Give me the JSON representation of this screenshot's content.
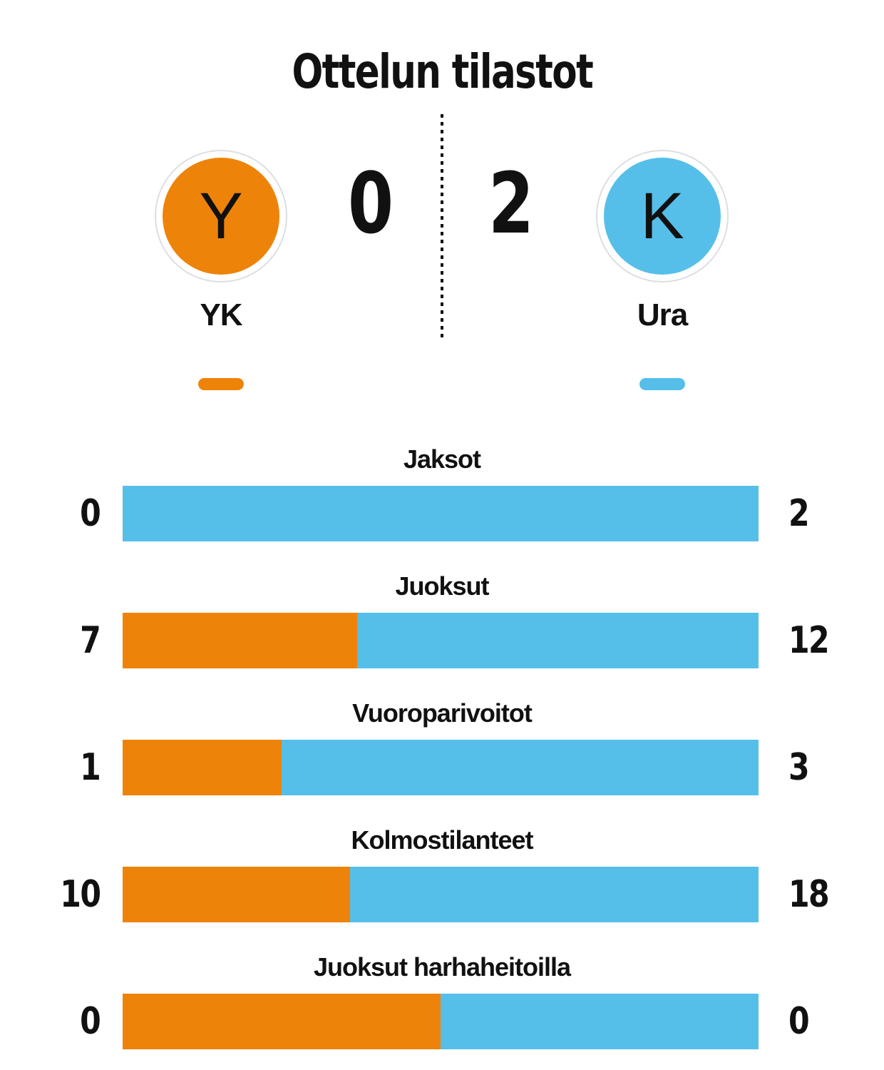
{
  "title": "Ottelun tilastot",
  "colors": {
    "home": "#ee8309",
    "away": "#55bfea",
    "ink": "#111111",
    "badge_ring": "#dcdfe2"
  },
  "scoreboard": {
    "home": {
      "initial": "Y",
      "name": "YK",
      "score": "0"
    },
    "away": {
      "initial": "K",
      "name": "Ura",
      "score": "2"
    }
  },
  "chart_data": {
    "type": "bar",
    "subtype": "horizontal-stacked-share",
    "title": "Ottelun tilastot",
    "categories": [
      "Jaksot",
      "Juoksut",
      "Vuoroparivoitot",
      "Kolmostilanteet",
      "Juoksut harhaheitoilla"
    ],
    "series": [
      {
        "name": "YK",
        "color": "#ee8309",
        "values": [
          0,
          7,
          1,
          10,
          0
        ]
      },
      {
        "name": "Ura",
        "color": "#55bfea",
        "values": [
          2,
          12,
          3,
          18,
          0
        ]
      }
    ],
    "share_rule": "home_fraction = home/(home+away), 50% when both are 0",
    "legend_position": "color pills under team names",
    "grid": false
  }
}
